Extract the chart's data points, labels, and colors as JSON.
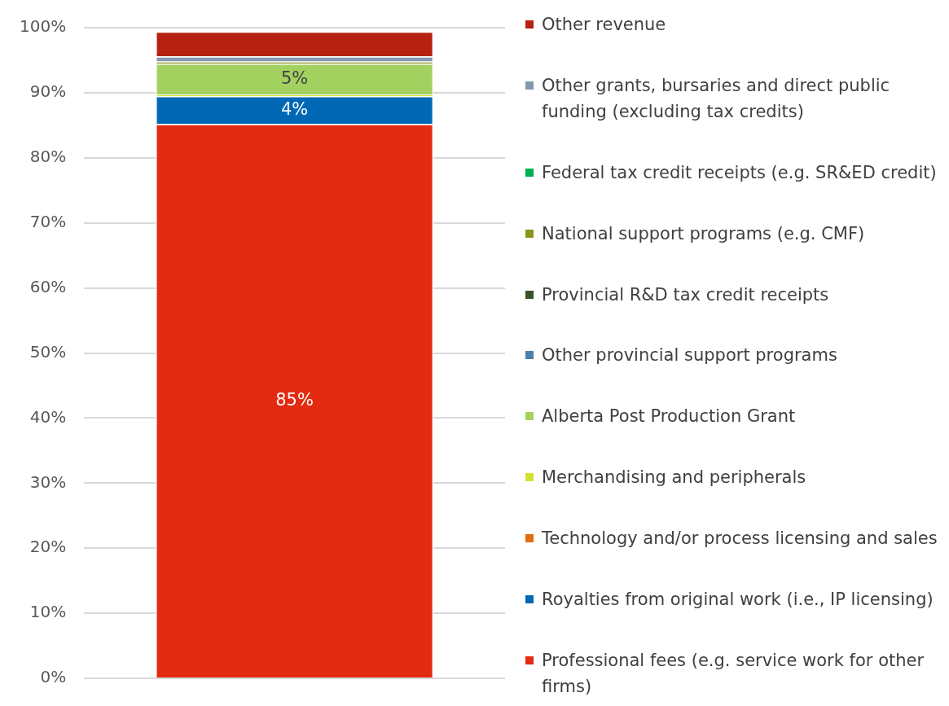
{
  "chart_data": {
    "type": "bar",
    "stacked": true,
    "categories": [
      null
    ],
    "series": [
      {
        "name": "Professional fees (e.g. service work for other firms)",
        "color": "#e32b12",
        "values": [
          85.2
        ],
        "value_labels": [
          "85%"
        ]
      },
      {
        "name": "Royalties from original work (i.e., IP licensing)",
        "color": "#0068b5",
        "values": [
          4.3
        ],
        "value_labels": [
          "4%"
        ]
      },
      {
        "name": "Technology and/or process licensing and sales",
        "color": "#e46c0a",
        "values": [
          0
        ],
        "value_labels": [
          null
        ]
      },
      {
        "name": "Merchandising and peripherals",
        "color": "#d4e031",
        "values": [
          0.2
        ],
        "value_labels": [
          null
        ]
      },
      {
        "name": "Alberta Post Production Grant",
        "color": "#a3d160",
        "values": [
          4.8
        ],
        "value_labels": [
          "5%"
        ]
      },
      {
        "name": "Other provincial support programs",
        "color": "#4d7fa8",
        "values": [
          0
        ],
        "value_labels": [
          null
        ]
      },
      {
        "name": "Provincial R&D tax credit receipts",
        "color": "#375623",
        "values": [
          0
        ],
        "value_labels": [
          null
        ]
      },
      {
        "name": "National support programs (e.g. CMF)",
        "color": "#8a9418",
        "values": [
          0.3
        ],
        "value_labels": [
          null
        ]
      },
      {
        "name": "Federal tax credit receipts (e.g. SR&ED credit)",
        "color": "#00b050",
        "values": [
          0
        ],
        "value_labels": [
          null
        ]
      },
      {
        "name": "Other grants, bursaries and direct public funding (excluding tax credits)",
        "color": "#8497b0",
        "values": [
          0.8
        ],
        "value_labels": [
          null
        ]
      },
      {
        "name": "Other revenue",
        "color": "#b7210f",
        "values": [
          3.8
        ],
        "value_labels": [
          null
        ]
      }
    ],
    "ylim": [
      0,
      100
    ],
    "yticks": [
      {
        "value": 0,
        "label": "0%"
      },
      {
        "value": 10,
        "label": "10%"
      },
      {
        "value": 20,
        "label": "20%"
      },
      {
        "value": 30,
        "label": "30%"
      },
      {
        "value": 40,
        "label": "40%"
      },
      {
        "value": 50,
        "label": "50%"
      },
      {
        "value": 60,
        "label": "60%"
      },
      {
        "value": 70,
        "label": "70%"
      },
      {
        "value": 80,
        "label": "80%"
      },
      {
        "value": 90,
        "label": "90%"
      },
      {
        "value": 100,
        "label": "100%"
      }
    ],
    "grid": "y",
    "legend": "right"
  }
}
